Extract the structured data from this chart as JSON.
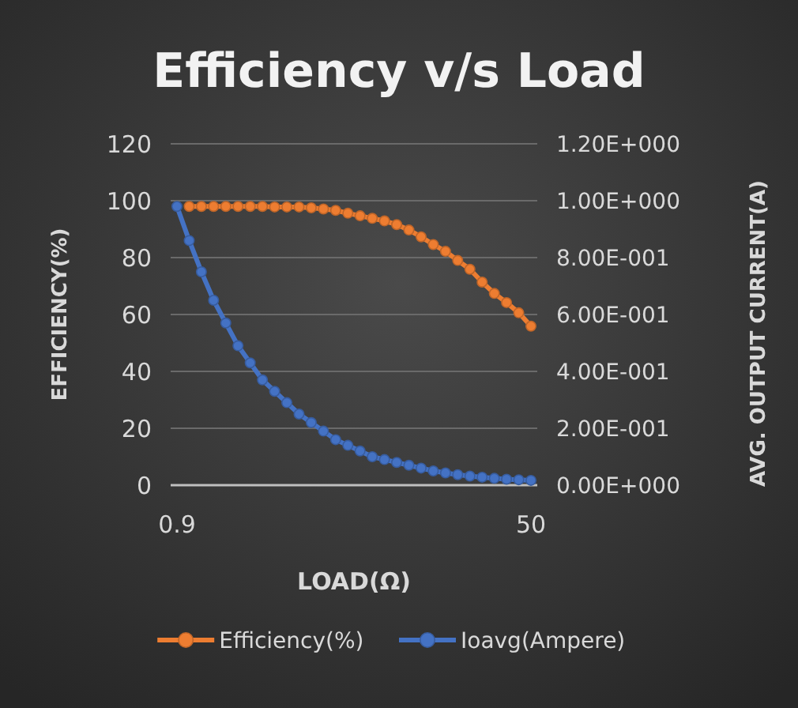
{
  "chart_data": {
    "type": "line",
    "title": "Efficiency v/s Load",
    "xlabel": "LOAD(Ω)",
    "ylabel": "EFFICIENCY(%)",
    "y2label": "AVG. OUTPUT CURRENT(A)",
    "categories": [
      "0.9",
      null,
      null,
      null,
      null,
      null,
      null,
      null,
      null,
      null,
      null,
      null,
      null,
      null,
      null,
      null,
      null,
      null,
      null,
      null,
      null,
      null,
      null,
      null,
      null,
      null,
      null,
      null,
      null,
      "50"
    ],
    "series": [
      {
        "name": "Efficiency(%)",
        "color": "#ed7d31",
        "values": [
          null,
          98,
          98,
          98,
          98,
          98,
          98,
          98,
          97.8,
          97.8,
          97.8,
          97.5,
          97.1,
          96.6,
          95.6,
          94.7,
          93.8,
          92.9,
          91.6,
          89.7,
          87.3,
          84.6,
          82.2,
          79,
          75.9,
          71.4,
          67.4,
          64.2,
          60.6,
          55.9
        ]
      },
      {
        "name": "Ioavg(Ampere)",
        "color": "#4472c4",
        "axis": "y2",
        "values": [
          0.98,
          0.86,
          0.75,
          0.65,
          0.57,
          0.49,
          0.43,
          0.37,
          0.33,
          0.29,
          0.25,
          0.22,
          0.19,
          0.16,
          0.14,
          0.12,
          0.1,
          0.09,
          0.08,
          0.07,
          0.06,
          0.05,
          0.043,
          0.037,
          0.032,
          0.028,
          0.024,
          0.021,
          0.019,
          0.017
        ]
      }
    ],
    "ylim": [
      0,
      120
    ],
    "yticks": [
      0,
      20,
      40,
      60,
      80,
      100,
      120
    ],
    "y2lim": [
      0,
      1.2
    ],
    "y2ticks": [
      {
        "value": 0,
        "label": "0.00E+000"
      },
      {
        "value": 0.2,
        "label": "2.00E-001"
      },
      {
        "value": 0.4,
        "label": "4.00E-001"
      },
      {
        "value": 0.6,
        "label": "6.00E-001"
      },
      {
        "value": 0.8,
        "label": "8.00E-001"
      },
      {
        "value": 1,
        "label": "1.00E+000"
      },
      {
        "value": 1.2,
        "label": "1.20E+000"
      }
    ],
    "grid": "y",
    "legend": "bottom",
    "marker": "circle",
    "line_style": "solid"
  }
}
